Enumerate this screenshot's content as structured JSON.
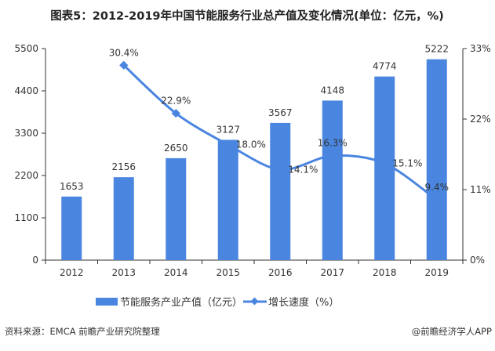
{
  "chart_data": {
    "type": "bar+line",
    "title": "图表5：2012-2019年中国节能服务行业总产值及变化情况(单位：亿元，%)",
    "categories": [
      "2012",
      "2013",
      "2014",
      "2015",
      "2016",
      "2017",
      "2018",
      "2019"
    ],
    "series": [
      {
        "name": "节能服务产业产值（亿元）",
        "type": "bar",
        "axis": "left",
        "values": [
          1653,
          2156,
          2650,
          3127,
          3567,
          4148,
          4774,
          5222
        ],
        "color": "#4a86e0"
      },
      {
        "name": "增长速度（%）",
        "type": "line",
        "axis": "right",
        "smooth": true,
        "values": [
          null,
          30.4,
          22.9,
          18.0,
          14.1,
          16.3,
          15.1,
          9.4
        ],
        "labels": [
          "",
          "30.4%",
          "22.9%",
          "18.0%",
          "14.1%",
          "16.3%",
          "15.1%",
          "9.4%"
        ],
        "color": "#4a86e0"
      }
    ],
    "left_axis": {
      "ylim": [
        0,
        5500
      ],
      "ticks": [
        "0",
        "1100",
        "2200",
        "3300",
        "4400",
        "5500"
      ]
    },
    "right_axis": {
      "ylim": [
        0,
        33
      ],
      "ticks": [
        "0%",
        "11%",
        "22%",
        "33%"
      ]
    },
    "grid": false,
    "legend": "bottom"
  },
  "footer": {
    "source": "资料来源：EMCA 前瞻产业研究院整理",
    "brand": "@前瞻经济学人APP"
  }
}
